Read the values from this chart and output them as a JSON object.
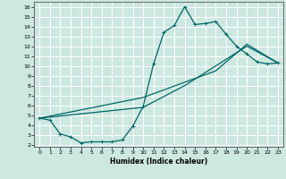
{
  "xlabel": "Humidex (Indice chaleur)",
  "bg_color": "#cce8e0",
  "grid_color": "#b0d8d0",
  "line_color": "#006666",
  "xlim": [
    -0.5,
    23.5
  ],
  "ylim": [
    1.8,
    16.5
  ],
  "xticks": [
    0,
    1,
    2,
    3,
    4,
    5,
    6,
    7,
    8,
    9,
    10,
    11,
    12,
    13,
    14,
    15,
    16,
    17,
    18,
    19,
    20,
    21,
    22,
    23
  ],
  "yticks": [
    2,
    3,
    4,
    5,
    6,
    7,
    8,
    9,
    10,
    11,
    12,
    13,
    14,
    15,
    16
  ],
  "line1_x": [
    0,
    1,
    2,
    3,
    4,
    5,
    6,
    7,
    8,
    9,
    10,
    11,
    12,
    13,
    14,
    15,
    16,
    17,
    18,
    19,
    20,
    21,
    22,
    23
  ],
  "line1_y": [
    4.7,
    4.5,
    3.1,
    2.8,
    2.2,
    2.3,
    2.3,
    2.3,
    2.5,
    3.9,
    5.9,
    10.2,
    13.4,
    14.1,
    16.0,
    14.2,
    14.3,
    14.5,
    13.2,
    12.0,
    11.2,
    10.4,
    10.2,
    10.3
  ],
  "line2_x": [
    0,
    10,
    14,
    20,
    23
  ],
  "line2_y": [
    4.7,
    5.8,
    8.0,
    12.0,
    10.3
  ],
  "line3_x": [
    0,
    10,
    17,
    20,
    23
  ],
  "line3_y": [
    4.7,
    6.8,
    9.5,
    12.2,
    10.3
  ]
}
